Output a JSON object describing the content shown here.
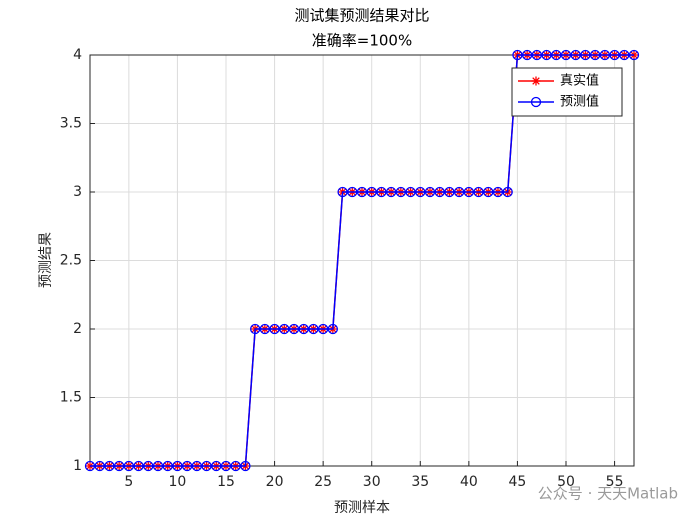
{
  "chart_data": {
    "type": "line",
    "title": "测试集预测结果对比",
    "subtitle": "准确率=100%",
    "x_label": "预测样本",
    "y_label": "预测结果",
    "x": [
      1,
      2,
      3,
      4,
      5,
      6,
      7,
      8,
      9,
      10,
      11,
      12,
      13,
      14,
      15,
      16,
      17,
      18,
      19,
      20,
      21,
      22,
      23,
      24,
      25,
      26,
      27,
      28,
      29,
      30,
      31,
      32,
      33,
      34,
      35,
      36,
      37,
      38,
      39,
      40,
      41,
      42,
      43,
      44,
      45,
      46,
      47,
      48,
      49,
      50,
      51,
      52,
      53,
      54,
      55,
      56,
      57
    ],
    "series": [
      {
        "name": "真实值",
        "color": "#ff0000",
        "marker": "star",
        "values": [
          1,
          1,
          1,
          1,
          1,
          1,
          1,
          1,
          1,
          1,
          1,
          1,
          1,
          1,
          1,
          1,
          1,
          2,
          2,
          2,
          2,
          2,
          2,
          2,
          2,
          2,
          3,
          3,
          3,
          3,
          3,
          3,
          3,
          3,
          3,
          3,
          3,
          3,
          3,
          3,
          3,
          3,
          3,
          3,
          4,
          4,
          4,
          4,
          4,
          4,
          4,
          4,
          4,
          4,
          4,
          4,
          4
        ]
      },
      {
        "name": "预测值",
        "color": "#0000ff",
        "marker": "circle",
        "values": [
          1,
          1,
          1,
          1,
          1,
          1,
          1,
          1,
          1,
          1,
          1,
          1,
          1,
          1,
          1,
          1,
          1,
          2,
          2,
          2,
          2,
          2,
          2,
          2,
          2,
          2,
          3,
          3,
          3,
          3,
          3,
          3,
          3,
          3,
          3,
          3,
          3,
          3,
          3,
          3,
          3,
          3,
          3,
          3,
          4,
          4,
          4,
          4,
          4,
          4,
          4,
          4,
          4,
          4,
          4,
          4,
          4
        ]
      }
    ],
    "xlim": [
      1,
      57
    ],
    "xticks": [
      5,
      10,
      15,
      20,
      25,
      30,
      35,
      40,
      45,
      50,
      55
    ],
    "ylim": [
      1,
      4
    ],
    "yticks": [
      1,
      1.5,
      2,
      2.5,
      3,
      3.5,
      4
    ],
    "grid": true,
    "legend": "northeast",
    "watermark": "公众号 · 天天Matlab"
  }
}
